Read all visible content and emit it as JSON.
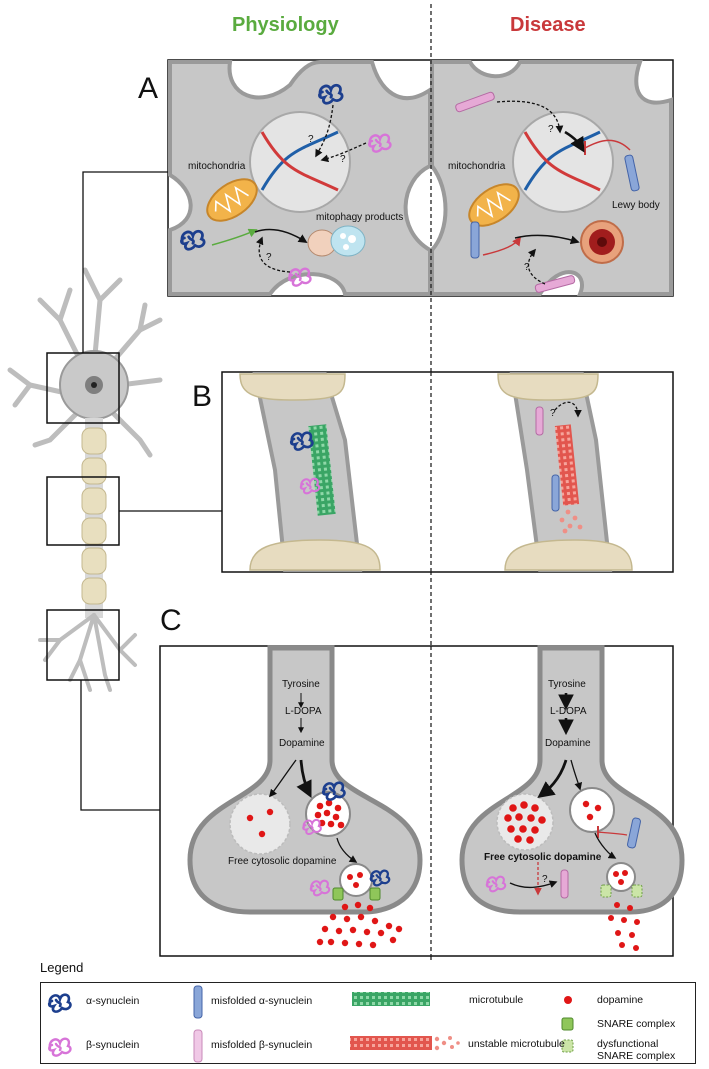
{
  "headers": {
    "physiology": "Physiology",
    "disease": "Disease"
  },
  "colors": {
    "physiology": "#5aab3f",
    "disease": "#c9393b",
    "alpha": "#1d3f8e",
    "beta": "#d774d8",
    "dopamine": "#e01616",
    "microtubule": "#3aa565",
    "unstable": "#e2564e",
    "snare": "#8fc65a",
    "membrane": "#9a9a9a",
    "cytoplasm": "#c7c7c7"
  },
  "panels": {
    "A": {
      "letter": "A",
      "phys": {
        "mitochondria": "mitochondria",
        "mitophagy": "mitophagy products",
        "q": "?"
      },
      "dis": {
        "mitochondria": "mitochondria",
        "lewy": "Lewy body",
        "q": "?"
      }
    },
    "B": {
      "letter": "B",
      "q": "?"
    },
    "C": {
      "letter": "C",
      "phys": {
        "tyrosine": "Tyrosine",
        "ldopa": "L-DOPA",
        "dopamine": "Dopamine",
        "free": "Free cytosolic dopamine"
      },
      "dis": {
        "tyrosine": "Tyrosine",
        "ldopa": "L-DOPA",
        "dopamine": "Dopamine",
        "free": "Free cytosolic dopamine",
        "q": "?"
      }
    }
  },
  "legend": {
    "title": "Legend",
    "items": {
      "alpha": "α-synuclein",
      "beta": "β-synuclein",
      "mis_alpha": "misfolded α-synuclein",
      "mis_beta": "misfolded β-synuclein",
      "microtubule": "microtubule",
      "unstable": "unstable microtubule",
      "dopamine": "dopamine",
      "snare": "SNARE complex",
      "dys_snare_1": "dysfunctional",
      "dys_snare_2": "SNARE complex"
    }
  }
}
